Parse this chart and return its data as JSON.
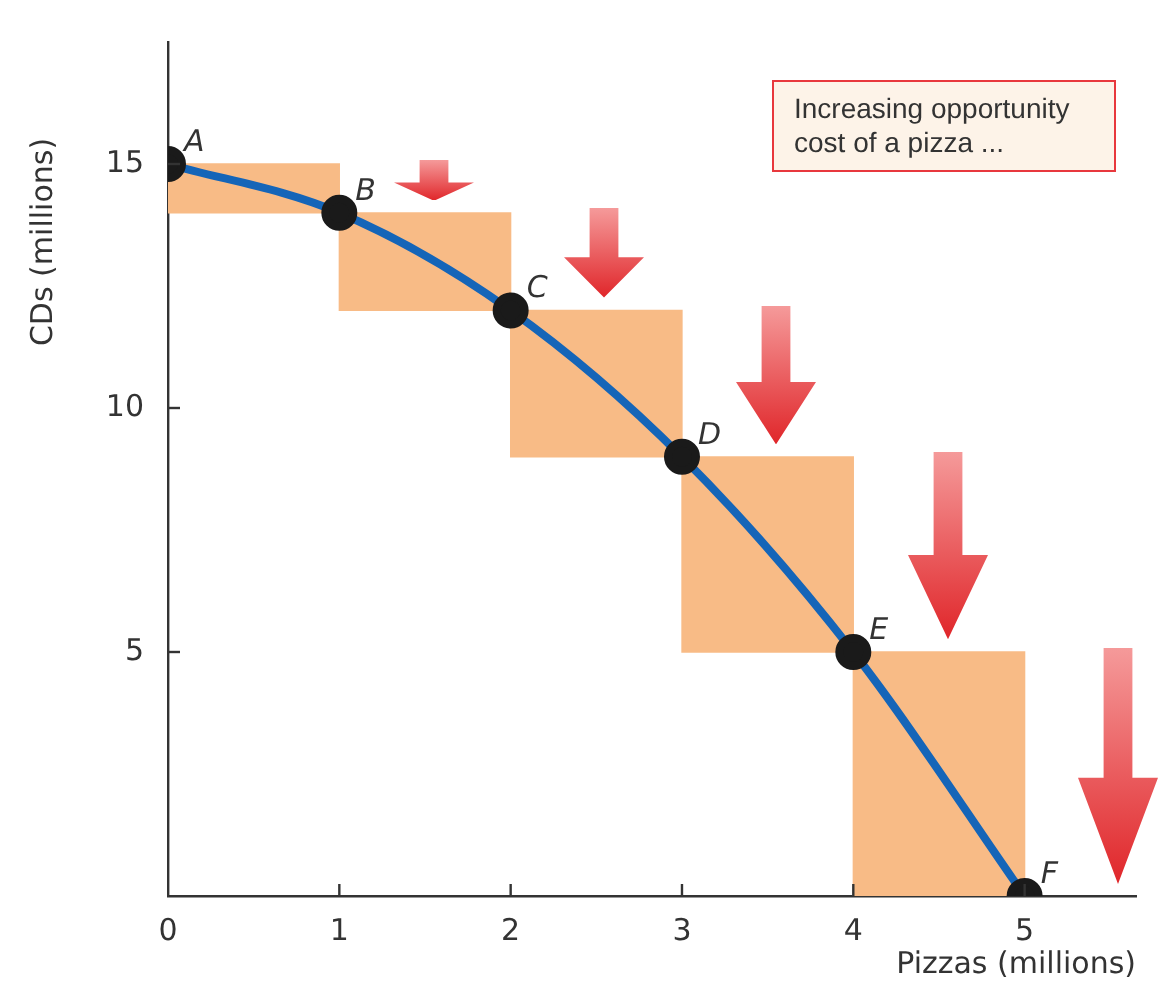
{
  "chart_data": {
    "type": "line",
    "xlabel": "Pizzas (millions)",
    "ylabel": "CDs (millions)",
    "xlim": [
      0,
      5.65
    ],
    "ylim": [
      0,
      17.5
    ],
    "xticks": [
      0,
      1,
      2,
      3,
      4,
      5
    ],
    "yticks": [
      {
        "value": 0,
        "label": null
      },
      5,
      10,
      15
    ],
    "grid": false,
    "legend": false,
    "marker": "circle",
    "series": [
      {
        "type": "bar",
        "color": "#f8bb86",
        "x": [
          0.5,
          1.5,
          2.5,
          3.5,
          4.5
        ],
        "base": [
          14,
          12,
          9,
          5,
          0
        ],
        "values": [
          1,
          2,
          3,
          4,
          5
        ]
      },
      {
        "color": "#1565b8",
        "x": [
          0,
          1,
          2,
          3,
          4,
          5
        ],
        "values": [
          15,
          14,
          12,
          9,
          5,
          0
        ]
      }
    ],
    "annotations": [
      {
        "text": "A",
        "x": 0,
        "y": 15
      },
      {
        "text": "B",
        "x": 1,
        "y": 14
      },
      {
        "text": "C",
        "x": 2,
        "y": 12
      },
      {
        "text": "D",
        "x": 3,
        "y": 9
      },
      {
        "text": "E",
        "x": 4,
        "y": 5
      },
      {
        "text": "F",
        "x": 5,
        "y": 0
      },
      "Increasing opportunity cost of a pizza ..."
    ]
  }
}
